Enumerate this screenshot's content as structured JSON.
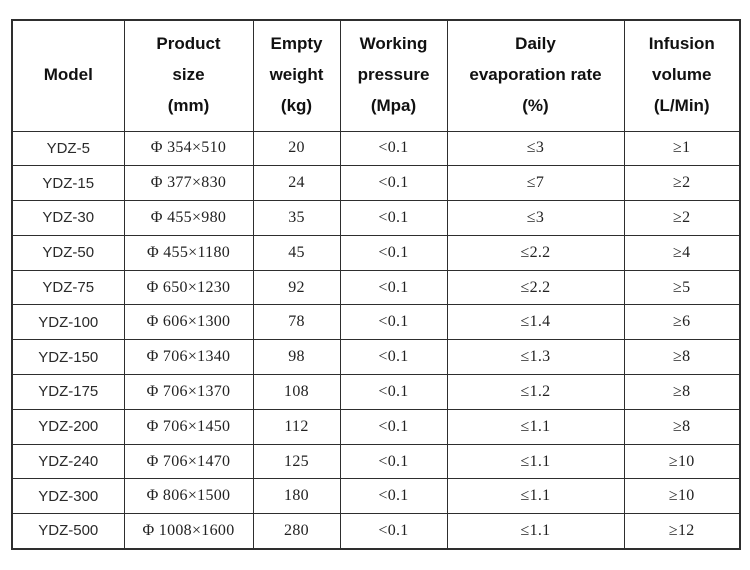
{
  "colors": {
    "background": "#ffffff",
    "border": "#2e2e2e",
    "header_text": "#111111",
    "cell_text": "#222222"
  },
  "table": {
    "columns": [
      {
        "id": "model",
        "label": "Model"
      },
      {
        "id": "product-size",
        "label": "Product\nsize\n(mm)"
      },
      {
        "id": "empty-weight",
        "label": "Empty\nweight\n(kg)"
      },
      {
        "id": "working-pressure",
        "label": "Working\npressure\n(Mpa)"
      },
      {
        "id": "daily-evaporation-rate",
        "label": "Daily\nevaporation rate\n(%)"
      },
      {
        "id": "infusion-volume",
        "label": "Infusion\nvolume\n(L/Min)"
      }
    ],
    "rows": [
      [
        "YDZ-5",
        "Φ 354×510",
        "20",
        "<0.1",
        "≤3",
        "≥1"
      ],
      [
        "YDZ-15",
        "Φ 377×830",
        "24",
        "<0.1",
        "≤7",
        "≥2"
      ],
      [
        "YDZ-30",
        "Φ 455×980",
        "35",
        "<0.1",
        "≤3",
        "≥2"
      ],
      [
        "YDZ-50",
        "Φ 455×1180",
        "45",
        "<0.1",
        "≤2.2",
        "≥4"
      ],
      [
        "YDZ-75",
        "Φ 650×1230",
        "92",
        "<0.1",
        "≤2.2",
        "≥5"
      ],
      [
        "YDZ-100",
        "Φ 606×1300",
        "78",
        "<0.1",
        "≤1.4",
        "≥6"
      ],
      [
        "YDZ-150",
        "Φ 706×1340",
        "98",
        "<0.1",
        "≤1.3",
        "≥8"
      ],
      [
        "YDZ-175",
        "Φ 706×1370",
        "108",
        "<0.1",
        "≤1.2",
        "≥8"
      ],
      [
        "YDZ-200",
        "Φ 706×1450",
        "112",
        "<0.1",
        "≤1.1",
        "≥8"
      ],
      [
        "YDZ-240",
        "Φ 706×1470",
        "125",
        "<0.1",
        "≤1.1",
        "≥10"
      ],
      [
        "YDZ-300",
        "Φ 806×1500",
        "180",
        "<0.1",
        "≤1.1",
        "≥10"
      ],
      [
        "YDZ-500",
        "Φ 1008×1600",
        "280",
        "<0.1",
        "≤1.1",
        "≥12"
      ]
    ]
  }
}
